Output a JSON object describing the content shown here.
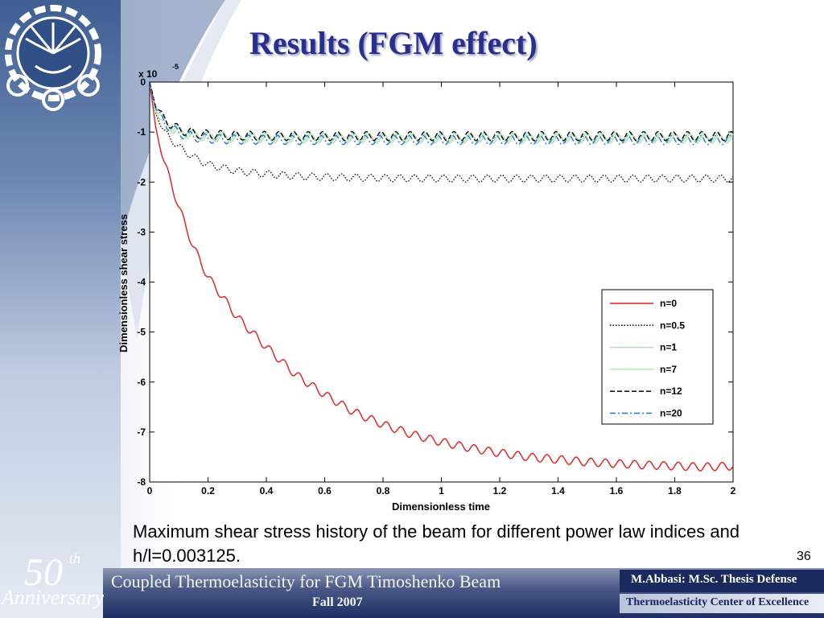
{
  "slide": {
    "title": "Results (FGM effect)",
    "caption": "Maximum shear stress history of the beam for different power law indices and h/l=0.003125.",
    "slide_number": "36",
    "footer": {
      "course_title": "Coupled Thermoelasticity for FGM Timoshenko Beam",
      "term": "Fall 2007",
      "author": "M.Abbasi: M.Sc. Thesis Defense",
      "center": "Thermoelasticity Center of Excellence",
      "anniversary_number": "50",
      "anniversary_suffix": "th",
      "anniversary_word": "Anniversary"
    }
  },
  "chart_data": {
    "type": "line",
    "title": "",
    "xlabel": "Dimensionless time",
    "ylabel": "Dimensionless shear stress",
    "y_multiplier": "x 10",
    "y_multiplier_exponent": "-5",
    "xlim": [
      0,
      2
    ],
    "ylim": [
      -8,
      0
    ],
    "x_ticks": [
      0,
      0.2,
      0.4,
      0.6,
      0.8,
      1,
      1.2,
      1.4,
      1.6,
      1.8,
      2
    ],
    "x_tick_labels": [
      "0",
      "0.2",
      "0.4",
      "0.6",
      "0.8",
      "1",
      "1.2",
      "1.4",
      "1.6",
      "1.8",
      "2"
    ],
    "y_ticks": [
      0,
      -1,
      -2,
      -3,
      -4,
      -5,
      -6,
      -7,
      -8
    ],
    "y_tick_labels": [
      "0",
      "-1",
      "-2",
      "-3",
      "-4",
      "-5",
      "-6",
      "-7",
      "-8"
    ],
    "grid": false,
    "legend_position": "lower-right",
    "series": [
      {
        "name": "n=0",
        "color": "#e31a1c",
        "dash": "solid",
        "x": [
          0,
          0.02,
          0.05,
          0.1,
          0.15,
          0.2,
          0.3,
          0.4,
          0.5,
          0.6,
          0.7,
          0.8,
          0.9,
          1.0,
          1.1,
          1.2,
          1.3,
          1.4,
          1.5,
          1.6,
          1.7,
          1.8,
          1.9,
          2.0
        ],
        "y": [
          0,
          -0.9,
          -1.6,
          -2.5,
          -3.3,
          -3.9,
          -4.7,
          -5.3,
          -5.85,
          -6.25,
          -6.6,
          -6.85,
          -7.05,
          -7.2,
          -7.32,
          -7.42,
          -7.5,
          -7.55,
          -7.6,
          -7.63,
          -7.66,
          -7.68,
          -7.7,
          -7.68
        ],
        "oscillation_amplitude": 0.08,
        "oscillation_period": 0.05
      },
      {
        "name": "n=0.5",
        "color": "#000000",
        "dash": "dotted",
        "x": [
          0,
          0.02,
          0.05,
          0.1,
          0.15,
          0.2,
          0.3,
          0.4,
          0.5,
          0.6,
          0.8,
          1.0,
          1.2,
          1.4,
          1.6,
          1.8,
          2.0
        ],
        "y": [
          0,
          -0.6,
          -1.0,
          -1.3,
          -1.5,
          -1.65,
          -1.78,
          -1.84,
          -1.88,
          -1.9,
          -1.92,
          -1.93,
          -1.93,
          -1.93,
          -1.93,
          -1.93,
          -1.93
        ],
        "oscillation_amplitude": 0.07,
        "oscillation_period": 0.05
      },
      {
        "name": "n=1",
        "color": "#b9d9b9",
        "dash": "solid",
        "x": [
          0,
          0.02,
          0.05,
          0.1,
          0.15,
          0.2,
          0.3,
          0.5,
          0.8,
          1.2,
          1.6,
          2.0
        ],
        "y": [
          0,
          -0.55,
          -0.85,
          -1.0,
          -1.07,
          -1.1,
          -1.12,
          -1.13,
          -1.13,
          -1.13,
          -1.13,
          -1.13
        ],
        "oscillation_amplitude": 0.09,
        "oscillation_period": 0.05
      },
      {
        "name": "n=7",
        "color": "#a9e9a9",
        "dash": "solid",
        "x": [
          0,
          0.02,
          0.05,
          0.1,
          0.15,
          0.2,
          0.3,
          0.5,
          0.8,
          1.2,
          1.6,
          2.0
        ],
        "y": [
          0,
          -0.5,
          -0.8,
          -0.98,
          -1.05,
          -1.08,
          -1.1,
          -1.11,
          -1.11,
          -1.11,
          -1.11,
          -1.11
        ],
        "oscillation_amplitude": 0.09,
        "oscillation_period": 0.05
      },
      {
        "name": "n=12",
        "color": "#000000",
        "dash": "dashed",
        "x": [
          0,
          0.02,
          0.05,
          0.1,
          0.15,
          0.2,
          0.3,
          0.5,
          0.8,
          1.2,
          1.6,
          2.0
        ],
        "y": [
          0,
          -0.45,
          -0.75,
          -0.95,
          -1.02,
          -1.05,
          -1.07,
          -1.08,
          -1.08,
          -1.08,
          -1.08,
          -1.08
        ],
        "oscillation_amplitude": 0.09,
        "oscillation_period": 0.05
      },
      {
        "name": "n=20",
        "color": "#1f78d4",
        "dash": "dashdot",
        "x": [
          0,
          0.02,
          0.05,
          0.1,
          0.15,
          0.2,
          0.3,
          0.5,
          0.8,
          1.2,
          1.6,
          2.0
        ],
        "y": [
          0,
          -0.5,
          -0.82,
          -1.02,
          -1.1,
          -1.13,
          -1.15,
          -1.16,
          -1.16,
          -1.16,
          -1.16,
          -1.16
        ],
        "oscillation_amplitude": 0.09,
        "oscillation_period": 0.05
      }
    ]
  }
}
